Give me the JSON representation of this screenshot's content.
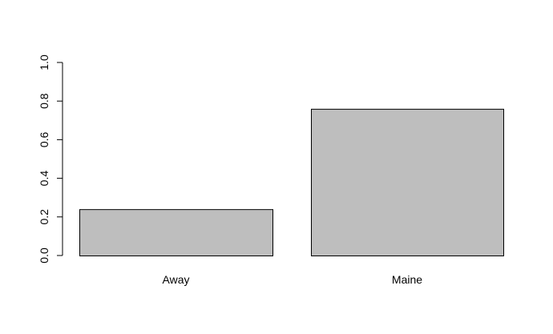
{
  "chart_data": {
    "type": "bar",
    "categories": [
      "Away",
      "Maine"
    ],
    "values": [
      0.24,
      0.76
    ],
    "title": "",
    "xlabel": "",
    "ylabel": "",
    "ylim": [
      0,
      1
    ],
    "yticks": [
      "0.0",
      "0.2",
      "0.4",
      "0.6",
      "0.8",
      "1.0"
    ],
    "grid": false,
    "colors": {
      "bar_fill": "#bebebe",
      "bar_stroke": "#000000",
      "axis": "#000000",
      "background": "#ffffff"
    }
  }
}
